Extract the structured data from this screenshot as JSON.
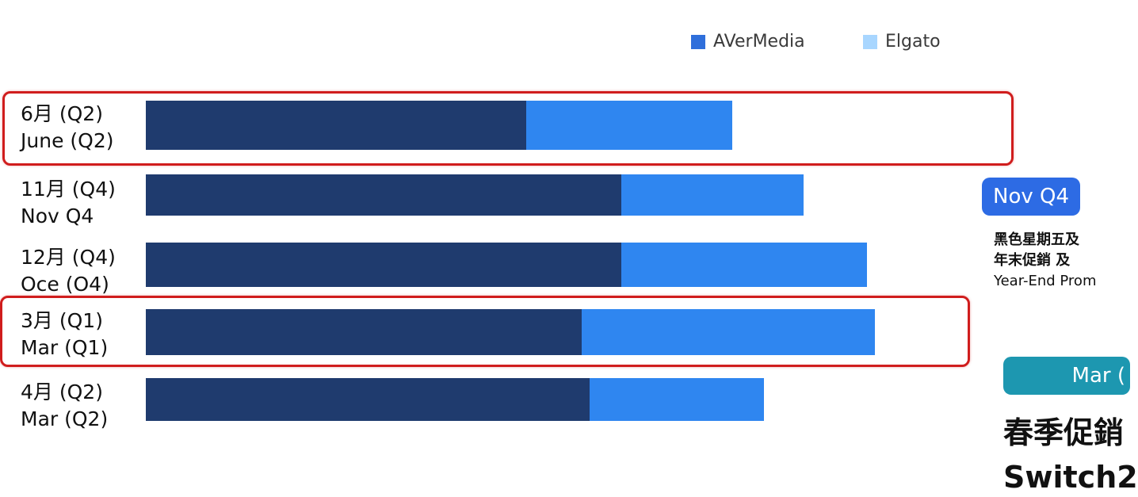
{
  "legend": [
    {
      "label": "AVerMedia",
      "color": "#2f6fdb"
    },
    {
      "label": "Elgato",
      "color": "#a8d6ff"
    }
  ],
  "rows": [
    {
      "label_zh": "6月 (Q2)",
      "label_en": "June (Q2)",
      "highlighted": true
    },
    {
      "label_zh": "11月 (Q4)",
      "label_en": "Nov Q4",
      "highlighted": false
    },
    {
      "label_zh": "12月 (Q4)",
      "label_en": "Oce (O4)",
      "highlighted": false
    },
    {
      "label_zh": "3月 (Q1)",
      "label_en": "Mar (Q1)",
      "highlighted": true
    },
    {
      "label_zh": "4月 (Q2)",
      "label_en": "Mar (Q2)",
      "highlighted": false
    }
  ],
  "chart_data": {
    "type": "bar",
    "orientation": "horizontal",
    "stacked": true,
    "categories": [
      "6月 (Q2) June (Q2)",
      "11月 (Q4) Nov Q4",
      "12月 (Q4) Oce (O4)",
      "3月 (Q1) Mar (Q1)",
      "4月 (Q2) Mar (Q2)"
    ],
    "series": [
      {
        "name": "AVerMedia",
        "values": [
          48,
          60,
          60,
          55,
          56
        ],
        "color": "#1f3b6e"
      },
      {
        "name": "Elgato",
        "values": [
          26,
          23,
          31,
          37,
          22
        ],
        "color": "#2f86f0"
      }
    ],
    "xlim": [
      0,
      100
    ],
    "grid": false,
    "legend_position": "top-right"
  },
  "side_panel": {
    "badge1": "Nov Q4",
    "note_line1": "黑色星期五及",
    "note_line2": "年末促銷 及",
    "note_line3": "Year-End Prom",
    "badge2": "Mar (",
    "text1": "春季促銷",
    "text2": "Switch2"
  }
}
